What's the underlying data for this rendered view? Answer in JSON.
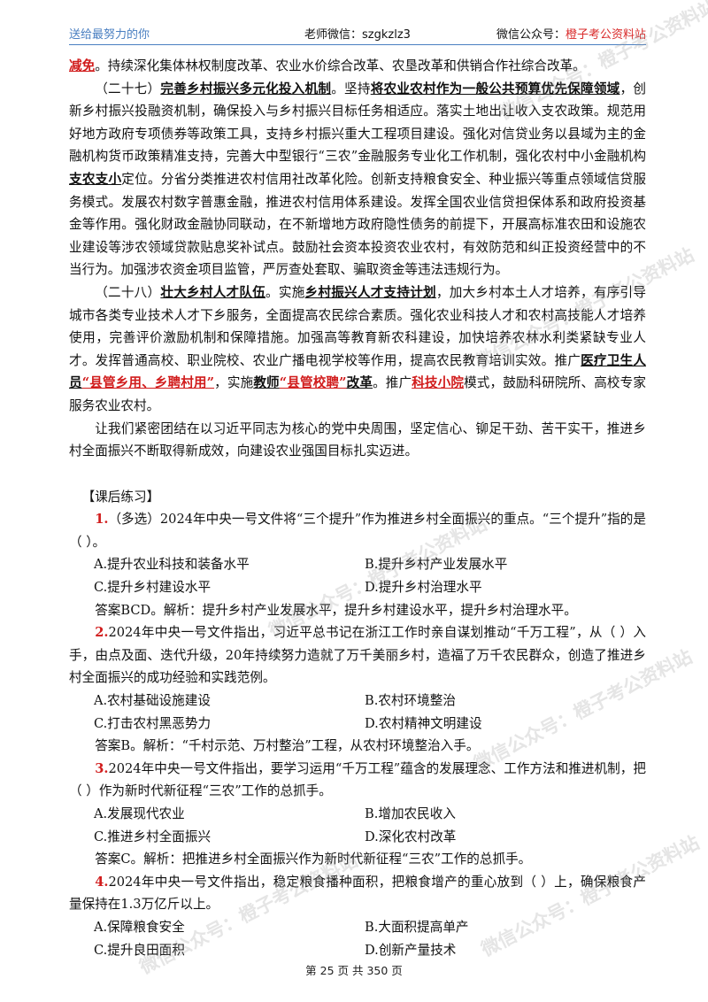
{
  "header": {
    "left": "送给最努力的你",
    "center": "老师微信：szgkzlz3",
    "right_prefix": "微信公众号：",
    "right_highlight": "橙子考公资料站"
  },
  "sec26_tail": {
    "bold_red": "减免",
    "rest": "。持续深化集体林权制度改革、农业水价综合改革、农垦改革和供销合作社综合改革。"
  },
  "sec27": {
    "num": "（二十七）",
    "title": "完善乡村振兴多元化投入机制",
    "t1": "。坚持",
    "b1": "将农业农村作为一般公共预算优先保障领域",
    "t2": "，创新乡村振兴投融资机制，确保投入与乡村振兴目标任务相适应。落实土地出让收入支农政策。规范用好地方政府专项债券等政策工具，支持乡村振兴重大工程项目建设。强化对信贷业务以县域为主的金融机构货币政策精准支持，完善大中型银行“三农”金融服务专业化工作机制，强化农村中小金融机构",
    "b2": "支农支小",
    "t3": "定位。分省分类推进农村信用社改革化险。创新支持粮食安全、种业振兴等重点领域信贷服务模式。发展农村数字普惠金融，推进农村信用体系建设。发挥全国农业信贷担保体系和政府投资基金等作用。强化财政金融协同联动，在不新增地方政府隐性债务的前提下，开展高标准农田和设施农业建设等涉农领域贷款贴息奖补试点。鼓励社会资本投资农业农村，有效防范和纠正投资经营中的不当行为。加强涉农资金项目监管，严厉查处套取、骗取资金等违法违规行为。"
  },
  "sec28": {
    "num": "（二十八）",
    "title": "壮大乡村人才队伍",
    "t1": "。实施",
    "b1": "乡村振兴人才支持计划",
    "t2": "，加大乡村本土人才培养，有序引导城市各类专业技术人才下乡服务，全面提高农民综合素质。强化农业科技人才和农村高技能人才培养使用，完善评价激励机制和保障措施。加强高等教育新农科建设，加快培养农林水利类紧缺专业人才。发挥普通高校、职业院校、农业广播电视学校等作用，提高农民教育培训实效。推广",
    "b2": "医疗卫生人员",
    "r2": "“县管乡用、乡聘村用”",
    "t3": "，实施",
    "b3": "教师",
    "r3": "“县管校聘”",
    "b3b": "改革",
    "t4": "。推广",
    "r4": "科技小院",
    "t5": "模式，鼓励科研院所、高校专家服务农业农村。"
  },
  "closing": "让我们紧密团结在以习近平同志为核心的党中央周围，坚定信心、铆足干劲、苦干实干，推进乡村全面振兴不断取得新成效，向建设农业强国目标扎实迈进。",
  "practice_title": "【课后练习】",
  "questions": [
    {
      "num": "1.",
      "stem": "（多选）2024年中央一号文件将“三个提升”作为推进乡村全面振兴的重点。“三个提升”指的是（    ）。",
      "options": [
        "A.提升农业科技和装备水平",
        "B.提升乡村产业发展水平",
        "C.提升乡村建设水平",
        "D.提升乡村治理水平"
      ],
      "answer": "答案BCD。解析：提升乡村产业发展水平，提升乡村建设水平，提升乡村治理水平。"
    },
    {
      "num": "2.",
      "stem": "2024年中央一号文件指出，习近平总书记在浙江工作时亲自谋划推动“千万工程”，从（    ）入手，由点及面、迭代升级，20年持续努力造就了万千美丽乡村，造福了万千农民群众，创造了推进乡村全面振兴的成功经验和实践范例。",
      "options": [
        "A.农村基础设施建设",
        "B.农村环境整治",
        "C.打击农村黑恶势力",
        "D.农村精神文明建设"
      ],
      "answer": "答案B。解析：“千村示范、万村整治”工程，从农村环境整治入手。"
    },
    {
      "num": "3.",
      "stem": "2024年中央一号文件指出，要学习运用“千万工程”蕴含的发展理念、工作方法和推进机制，把（    ）作为新时代新征程“三农”工作的总抓手。",
      "options": [
        "A.发展现代农业",
        "B.增加农民收入",
        "C.推进乡村全面振兴",
        "D.深化农村改革"
      ],
      "answer": "答案C。解析：把推进乡村全面振兴作为新时代新征程“三农”工作的总抓手。"
    },
    {
      "num": "4.",
      "stem": "2024年中央一号文件指出，稳定粮食播种面积，把粮食增产的重心放到（    ）上，确保粮食产量保持在1.3万亿斤以上。",
      "options": [
        "A.保障粮食安全",
        "B.大面积提高单产",
        "C.提升良田面积",
        "D.创新产量技术"
      ]
    }
  ],
  "watermark": "微信公众号：橙子考公资料站",
  "footer": "第 25 页 共 350 页"
}
